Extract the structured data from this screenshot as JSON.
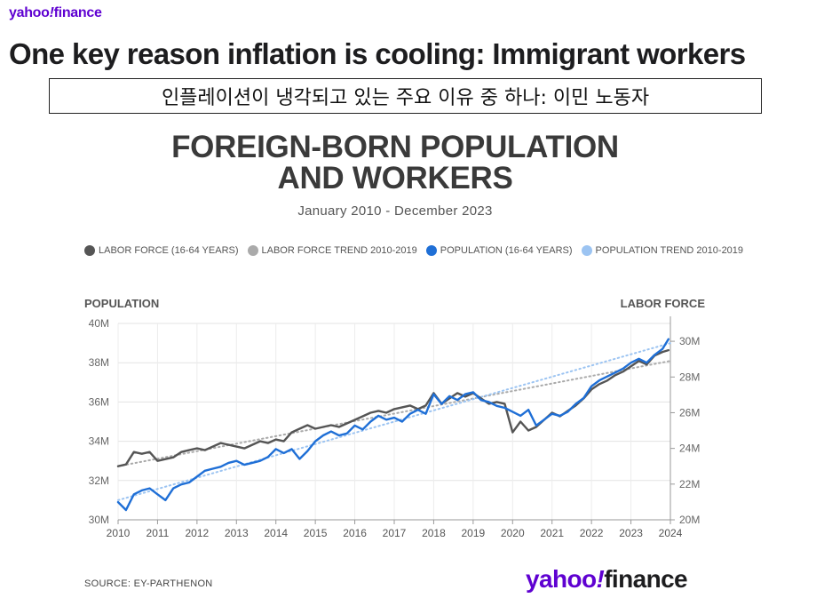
{
  "header": {
    "brand_name": "yahoo",
    "brand_bang": "!",
    "brand_suffix": "finance",
    "headline": "One key reason inflation is cooling: Immigrant workers",
    "translation": "인플레이션이 냉각되고 있는 주요 이유 중 하나: 이민 노동자"
  },
  "footer": {
    "source": "SOURCE: EY-PARTHENON",
    "brand_name": "yahoo",
    "brand_bang": "!",
    "brand_suffix": "finance"
  },
  "colors": {
    "labor_force": "#555555",
    "labor_trend": "#aaaaaa",
    "population": "#1f6fd6",
    "population_trend": "#9cc4f2",
    "brand": "#5f01d1"
  },
  "chart_data": {
    "type": "line",
    "title_line1": "FOREIGN-BORN POPULATION",
    "title_line2": "AND WORKERS",
    "subtitle": "January 2010 - December 2023",
    "y_left_label": "POPULATION",
    "y_right_label": "LABOR FORCE",
    "x_range": [
      2010,
      2024
    ],
    "x_ticks": [
      2010,
      2011,
      2012,
      2013,
      2014,
      2015,
      2016,
      2017,
      2018,
      2019,
      2020,
      2021,
      2022,
      2023,
      2024
    ],
    "y_left_range": [
      30,
      40
    ],
    "y_left_ticks": [
      "30M",
      "32M",
      "34M",
      "36M",
      "38M",
      "40M"
    ],
    "y_right_range": [
      20,
      31
    ],
    "y_right_ticks": [
      "20M",
      "22M",
      "24M",
      "26M",
      "28M",
      "30M"
    ],
    "y_right_tick_values": [
      20,
      22,
      24,
      26,
      28,
      30
    ],
    "grid": true,
    "legend_position": "top",
    "series": [
      {
        "name": "LABOR FORCE (16-64 YEARS)",
        "axis": "right",
        "style": "solid",
        "x": [
          2010.0,
          2010.2,
          2010.4,
          2010.6,
          2010.8,
          2011.0,
          2011.2,
          2011.4,
          2011.6,
          2011.8,
          2012.0,
          2012.2,
          2012.4,
          2012.6,
          2012.8,
          2013.0,
          2013.2,
          2013.4,
          2013.6,
          2013.8,
          2014.0,
          2014.2,
          2014.4,
          2014.6,
          2014.8,
          2015.0,
          2015.2,
          2015.4,
          2015.6,
          2015.8,
          2016.0,
          2016.2,
          2016.4,
          2016.6,
          2016.8,
          2017.0,
          2017.2,
          2017.4,
          2017.6,
          2017.8,
          2018.0,
          2018.2,
          2018.4,
          2018.6,
          2018.8,
          2019.0,
          2019.2,
          2019.4,
          2019.6,
          2019.8,
          2020.0,
          2020.2,
          2020.4,
          2020.6,
          2020.8,
          2021.0,
          2021.2,
          2021.4,
          2021.6,
          2021.8,
          2022.0,
          2022.2,
          2022.4,
          2022.6,
          2022.8,
          2023.0,
          2023.2,
          2023.4,
          2023.6,
          2023.8,
          2023.95
        ],
        "values": [
          23.0,
          23.1,
          23.8,
          23.7,
          23.8,
          23.3,
          23.4,
          23.5,
          23.8,
          23.9,
          24.0,
          23.9,
          24.1,
          24.3,
          24.2,
          24.1,
          24.0,
          24.2,
          24.4,
          24.3,
          24.5,
          24.4,
          24.9,
          25.1,
          25.3,
          25.1,
          25.2,
          25.3,
          25.2,
          25.4,
          25.6,
          25.8,
          26.0,
          26.1,
          26.0,
          26.2,
          26.3,
          26.4,
          26.2,
          26.4,
          27.1,
          26.5,
          26.8,
          27.1,
          26.9,
          27.1,
          26.8,
          26.5,
          26.6,
          26.5,
          24.9,
          25.5,
          25.0,
          25.2,
          25.6,
          26.0,
          25.8,
          26.1,
          26.4,
          26.8,
          27.3,
          27.6,
          27.8,
          28.1,
          28.3,
          28.6,
          28.9,
          28.7,
          29.2,
          29.4,
          29.5
        ]
      },
      {
        "name": "LABOR FORCE TREND 2010-2019",
        "axis": "right",
        "style": "dotted",
        "x": [
          2010,
          2024
        ],
        "values": [
          23.0,
          28.9
        ]
      },
      {
        "name": "POPULATION (16-64 YEARS)",
        "axis": "left",
        "style": "solid",
        "x": [
          2010.0,
          2010.2,
          2010.4,
          2010.6,
          2010.8,
          2011.0,
          2011.2,
          2011.4,
          2011.6,
          2011.8,
          2012.0,
          2012.2,
          2012.4,
          2012.6,
          2012.8,
          2013.0,
          2013.2,
          2013.4,
          2013.6,
          2013.8,
          2014.0,
          2014.2,
          2014.4,
          2014.6,
          2014.8,
          2015.0,
          2015.2,
          2015.4,
          2015.6,
          2015.8,
          2016.0,
          2016.2,
          2016.4,
          2016.6,
          2016.8,
          2017.0,
          2017.2,
          2017.4,
          2017.6,
          2017.8,
          2018.0,
          2018.2,
          2018.4,
          2018.6,
          2018.8,
          2019.0,
          2019.2,
          2019.4,
          2019.6,
          2019.8,
          2020.0,
          2020.2,
          2020.4,
          2020.6,
          2020.8,
          2021.0,
          2021.2,
          2021.4,
          2021.6,
          2021.8,
          2022.0,
          2022.2,
          2022.4,
          2022.6,
          2022.8,
          2023.0,
          2023.2,
          2023.4,
          2023.6,
          2023.8,
          2023.95
        ],
        "values": [
          30.9,
          30.5,
          31.3,
          31.5,
          31.6,
          31.3,
          31.0,
          31.6,
          31.8,
          31.9,
          32.2,
          32.5,
          32.6,
          32.7,
          32.9,
          33.0,
          32.8,
          32.9,
          33.0,
          33.2,
          33.6,
          33.4,
          33.6,
          33.1,
          33.5,
          34.0,
          34.3,
          34.5,
          34.3,
          34.4,
          34.8,
          34.6,
          35.0,
          35.3,
          35.1,
          35.2,
          35.0,
          35.4,
          35.6,
          35.4,
          36.4,
          35.9,
          36.3,
          36.1,
          36.4,
          36.5,
          36.1,
          36.0,
          35.8,
          35.7,
          35.5,
          35.3,
          35.6,
          34.8,
          35.1,
          35.4,
          35.3,
          35.5,
          35.9,
          36.2,
          36.8,
          37.1,
          37.3,
          37.5,
          37.7,
          38.0,
          38.2,
          38.0,
          38.4,
          38.7,
          39.2
        ]
      },
      {
        "name": "POPULATION TREND 2010-2019",
        "axis": "left",
        "style": "dotted",
        "x": [
          2010,
          2024
        ],
        "values": [
          31.0,
          39.0
        ]
      }
    ]
  }
}
